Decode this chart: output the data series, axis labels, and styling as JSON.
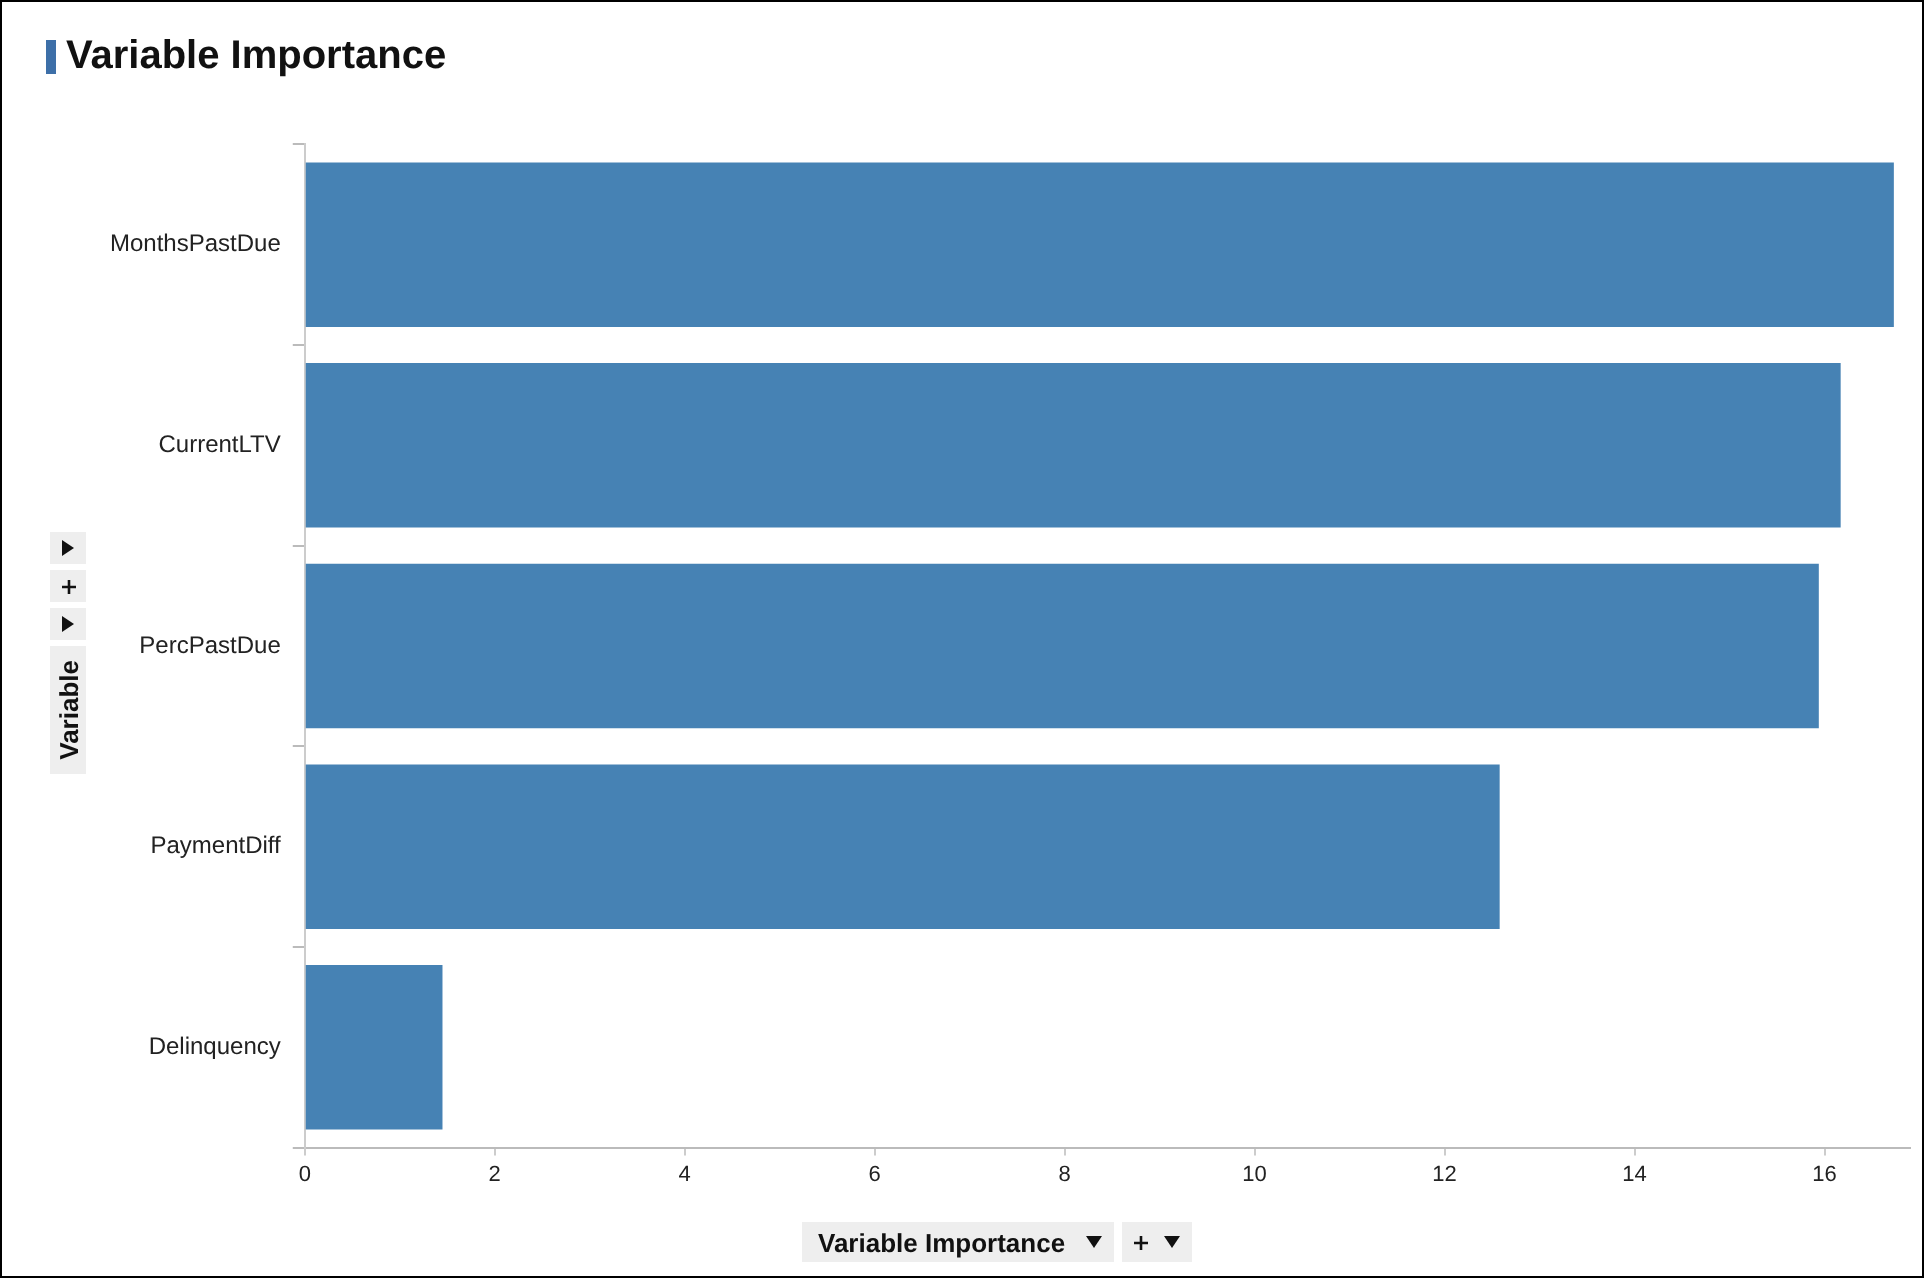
{
  "chart_data": {
    "type": "bar",
    "orientation": "horizontal",
    "title": "Variable Importance",
    "xlabel": "Variable Importance",
    "ylabel": "Variable",
    "categories": [
      "MonthsPastDue",
      "CurrentLTV",
      "PercPastDue",
      "PaymentDiff",
      "Delinquency"
    ],
    "values": [
      16.73,
      16.17,
      15.94,
      12.58,
      1.45
    ],
    "color": "#4682b4",
    "xlim": [
      0,
      16.9
    ],
    "xticks": [
      0,
      2,
      4,
      6,
      8,
      10,
      12,
      14,
      16
    ],
    "grid": false,
    "legend": false
  }
}
